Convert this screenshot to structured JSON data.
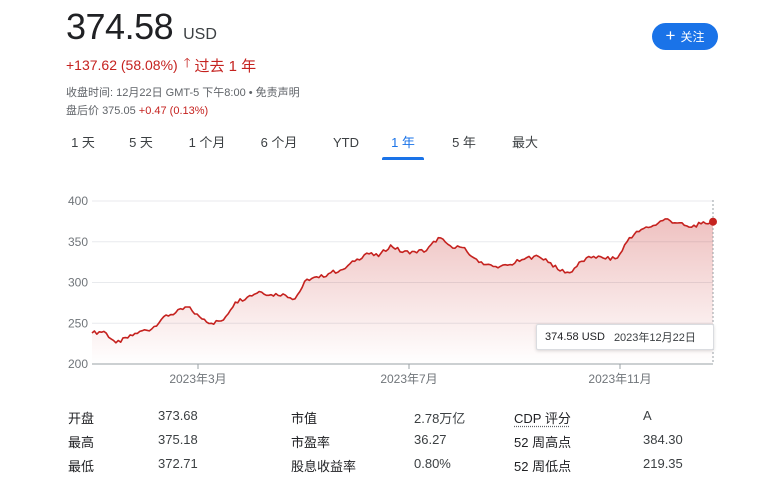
{
  "quote": {
    "price": "374.58",
    "currency": "USD",
    "change": "+137.62 (58.08%)",
    "period": "过去 1 年",
    "close_info": "收盘时间: 12月22日 GMT-5 下午8:00 • 免责声明",
    "after_hours_label": "盘后价",
    "after_hours_price": "375.05",
    "after_hours_change": "+0.47 (0.13%)"
  },
  "follow_button": {
    "label": "关注",
    "color": "#1a73e8"
  },
  "tabs": [
    {
      "label": "1 天",
      "active": false
    },
    {
      "label": "5 天",
      "active": false
    },
    {
      "label": "1 个月",
      "active": false
    },
    {
      "label": "6 个月",
      "active": false
    },
    {
      "label": "YTD",
      "active": false
    },
    {
      "label": "1 年",
      "active": true
    },
    {
      "label": "5 年",
      "active": false
    },
    {
      "label": "最大",
      "active": false
    }
  ],
  "tooltip": {
    "price": "374.58 USD",
    "date": "2023年12月22日"
  },
  "stats": [
    [
      {
        "label": "开盘",
        "value": "373.68"
      },
      {
        "label": "市值",
        "value": "2.78万亿"
      },
      {
        "label": "CDP 评分",
        "value": "A"
      }
    ],
    [
      {
        "label": "最高",
        "value": "375.18"
      },
      {
        "label": "市盈率",
        "value": "36.27"
      },
      {
        "label": "52 周高点",
        "value": "384.30"
      }
    ],
    [
      {
        "label": "最低",
        "value": "372.71"
      },
      {
        "label": "股息收益率",
        "value": "0.80%"
      },
      {
        "label": "52 周低点",
        "value": "219.35"
      }
    ]
  ],
  "chart_data": {
    "type": "area",
    "line_color": "#c5221f",
    "yticks": [
      "400",
      "350",
      "300",
      "250",
      "200"
    ],
    "ylim": [
      200,
      400
    ],
    "xticks": [
      "2023年3月",
      "2023年7月",
      "2023年11月"
    ],
    "x": [
      "2022-12-23",
      "2022-12-30",
      "2023-01-06",
      "2023-01-13",
      "2023-01-20",
      "2023-01-27",
      "2023-02-03",
      "2023-02-10",
      "2023-02-17",
      "2023-02-24",
      "2023-03-03",
      "2023-03-10",
      "2023-03-17",
      "2023-03-24",
      "2023-03-31",
      "2023-04-07",
      "2023-04-14",
      "2023-04-21",
      "2023-04-28",
      "2023-05-05",
      "2023-05-12",
      "2023-05-19",
      "2023-05-26",
      "2023-06-02",
      "2023-06-09",
      "2023-06-16",
      "2023-06-23",
      "2023-06-30",
      "2023-07-07",
      "2023-07-14",
      "2023-07-21",
      "2023-07-28",
      "2023-08-04",
      "2023-08-11",
      "2023-08-18",
      "2023-08-25",
      "2023-09-01",
      "2023-09-08",
      "2023-09-15",
      "2023-09-22",
      "2023-09-29",
      "2023-10-06",
      "2023-10-13",
      "2023-10-20",
      "2023-10-27",
      "2023-11-03",
      "2023-11-10",
      "2023-11-17",
      "2023-11-24",
      "2023-12-01",
      "2023-12-08",
      "2023-12-15",
      "2023-12-22"
    ],
    "values": [
      238,
      240,
      226,
      232,
      240,
      243,
      258,
      263,
      270,
      258,
      250,
      254,
      276,
      282,
      289,
      285,
      286,
      280,
      304,
      306,
      312,
      316,
      326,
      336,
      332,
      346,
      337,
      338,
      339,
      355,
      345,
      343,
      330,
      322,
      318,
      322,
      328,
      332,
      329,
      316,
      312,
      326,
      332,
      329,
      330,
      355,
      365,
      370,
      378,
      373,
      368,
      372,
      374.58
    ]
  }
}
